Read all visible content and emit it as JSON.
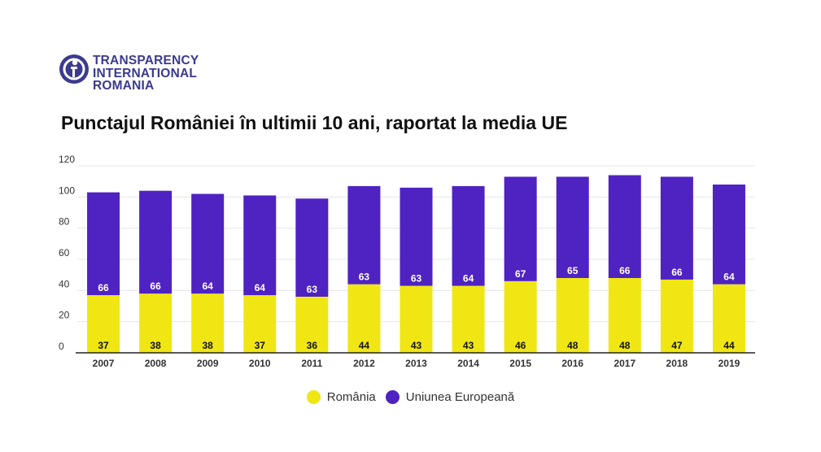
{
  "logo": {
    "lines": [
      "TRANSPARENCY",
      "INTERNATIONAL",
      "ROMANIA"
    ],
    "color": "#3b3a8f"
  },
  "title": "Punctajul României în ultimii 10 ani, raportat la media UE",
  "chart_data": {
    "type": "bar",
    "stacked": true,
    "title": "Punctajul României în ultimii 10 ani, raportat la media UE",
    "xlabel": "",
    "ylabel": "",
    "categories": [
      "2007",
      "2008",
      "2009",
      "2010",
      "2011",
      "2012",
      "2013",
      "2014",
      "2015",
      "2016",
      "2017",
      "2018",
      "2019"
    ],
    "series": [
      {
        "name": "România",
        "color": "#f0e614",
        "values": [
          37,
          38,
          38,
          37,
          36,
          44,
          43,
          43,
          46,
          48,
          48,
          47,
          44
        ]
      },
      {
        "name": "Uniunea Europeană",
        "color": "#4f22c2",
        "values": [
          66,
          66,
          64,
          64,
          63,
          63,
          63,
          64,
          67,
          65,
          66,
          66,
          64
        ]
      }
    ],
    "ylim": [
      0,
      120
    ],
    "yticks": [
      0,
      20,
      40,
      60,
      80,
      100,
      120
    ],
    "grid": true,
    "legend": "bottom-center"
  }
}
